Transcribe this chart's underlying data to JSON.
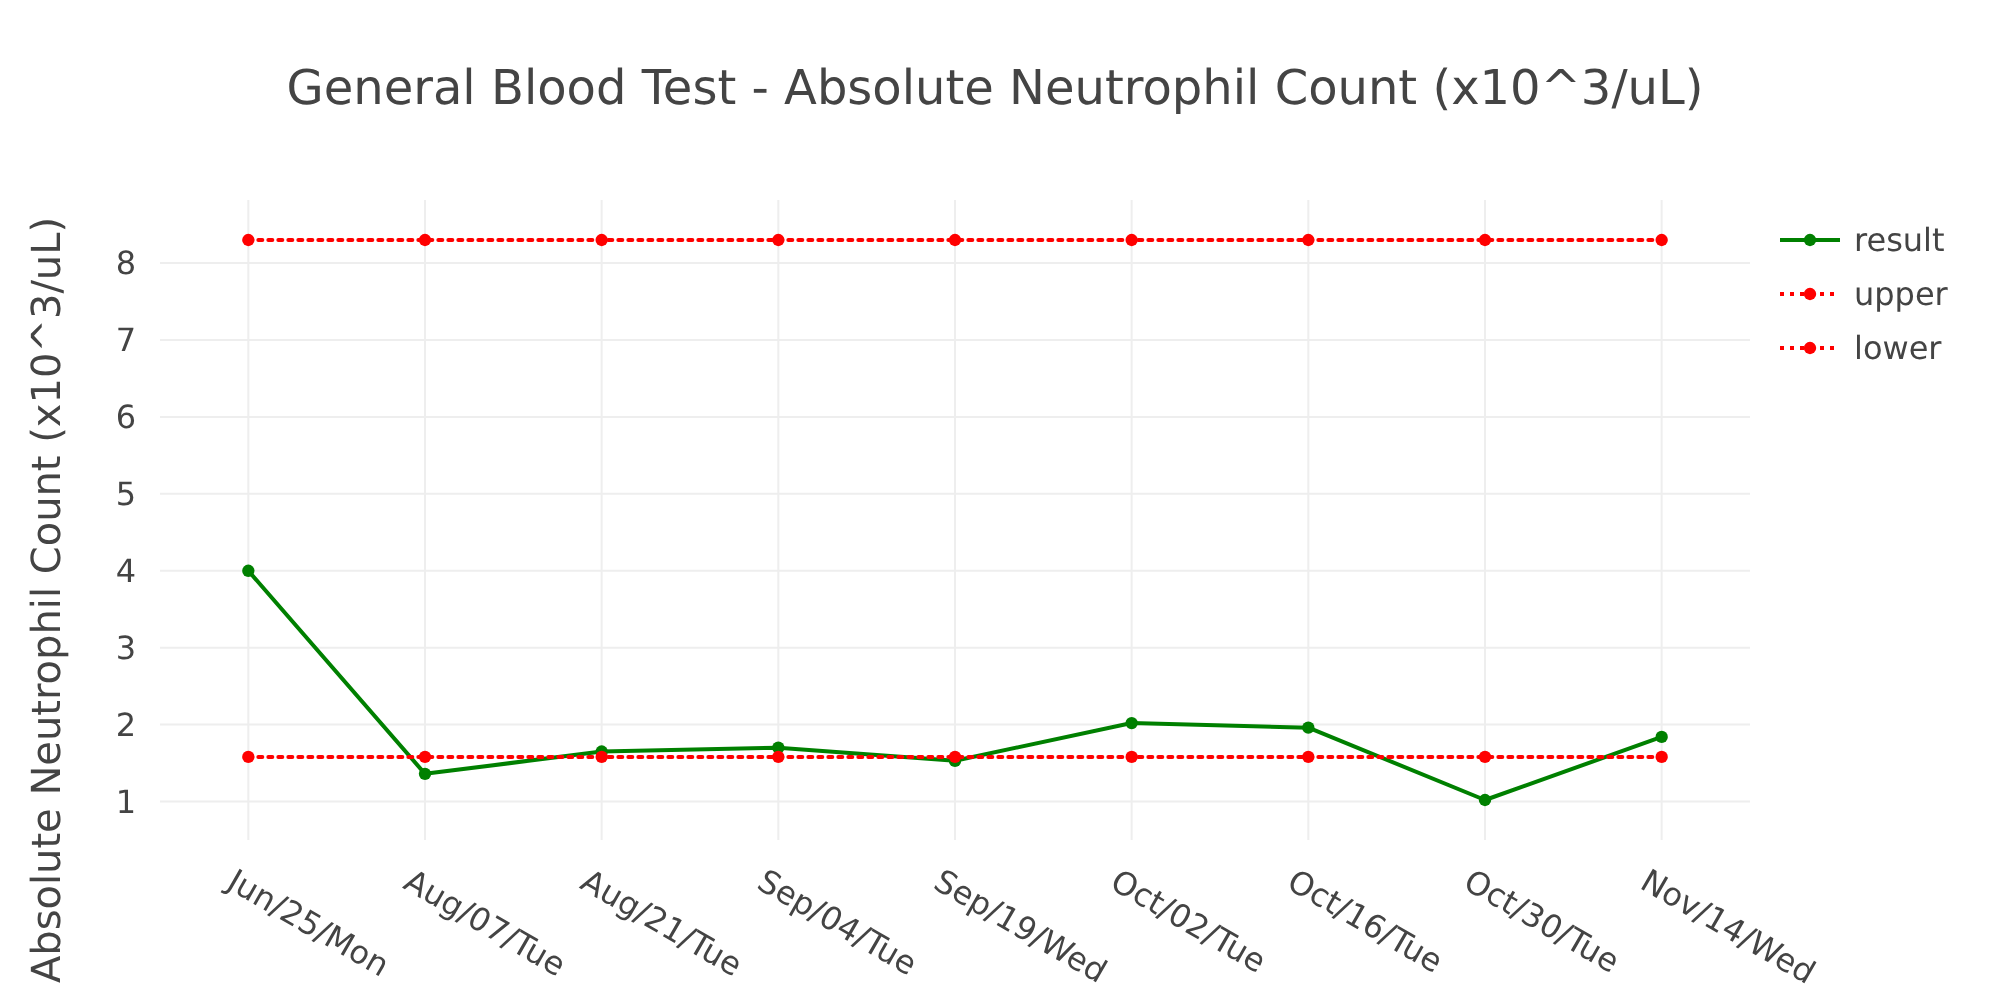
{
  "chart_data": {
    "type": "line",
    "title": "General Blood Test - Absolute Neutrophil Count (x10^3/uL)",
    "ylabel": "Absolute Neutrophil Count (x10^3/uL)",
    "categories": [
      "Jun/25/Mon",
      "Aug/07/Tue",
      "Aug/21/Tue",
      "Sep/04/Tue",
      "Sep/19/Wed",
      "Oct/02/Tue",
      "Oct/16/Tue",
      "Oct/30/Tue",
      "Nov/14/Wed"
    ],
    "series": [
      {
        "name": "result",
        "color": "#008000",
        "line_style": "solid",
        "values": [
          4.0,
          1.36,
          1.65,
          1.7,
          1.53,
          2.02,
          1.96,
          1.02,
          1.84
        ]
      },
      {
        "name": "upper",
        "color": "#ff0000",
        "line_style": "dotted",
        "values": [
          8.3,
          8.3,
          8.3,
          8.3,
          8.3,
          8.3,
          8.3,
          8.3,
          8.3
        ]
      },
      {
        "name": "lower",
        "color": "#ff0000",
        "line_style": "dotted",
        "values": [
          1.58,
          1.58,
          1.58,
          1.58,
          1.58,
          1.58,
          1.58,
          1.58,
          1.58
        ]
      }
    ],
    "ylim": [
      0.5,
      8.82
    ],
    "yticks": [
      1,
      2,
      3,
      4,
      5,
      6,
      7,
      8
    ],
    "grid": true,
    "legend": "top right",
    "marker": "circle"
  }
}
